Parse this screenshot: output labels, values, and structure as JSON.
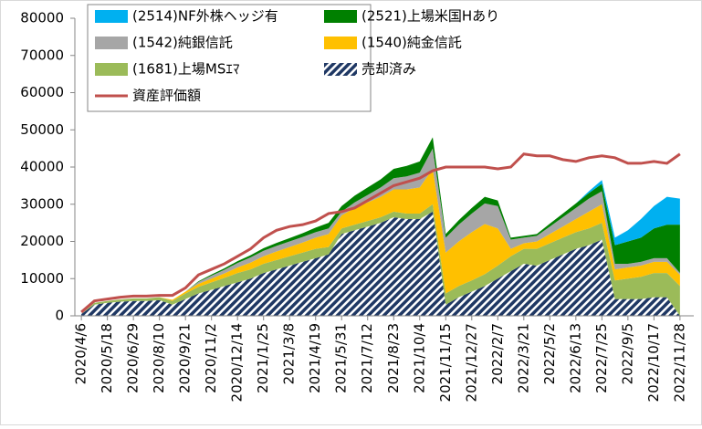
{
  "chart_data": {
    "type": "stacked_area",
    "categories": [
      "2020/4/6",
      null,
      "2020/5/18",
      null,
      "2020/6/29",
      null,
      "2020/8/10",
      null,
      "2020/9/21",
      null,
      "2020/11/2",
      null,
      "2020/12/14",
      null,
      "2021/1/25",
      null,
      "2021/3/8",
      null,
      "2021/4/19",
      null,
      "2021/5/31",
      null,
      "2021/7/12",
      null,
      "2021/8/23",
      null,
      "2021/10/4",
      null,
      "2021/11/15",
      null,
      "2021/12/27",
      null,
      "2022/2/7",
      null,
      "2022/3/21",
      null,
      "2022/5/2",
      null,
      "2022/6/13",
      null,
      "2022/7/25",
      null,
      "2022/9/5",
      null,
      "2022/10/17",
      null,
      "2022/11/28"
    ],
    "series": [
      {
        "name": "売却済み",
        "color": "#1f3864",
        "pattern": "hatch",
        "values": [
          500,
          3000,
          3500,
          3800,
          4000,
          4000,
          4200,
          3000,
          4500,
          6000,
          7000,
          8000,
          9000,
          10000,
          11500,
          12500,
          13500,
          14500,
          15500,
          16500,
          22000,
          23000,
          24000,
          25000,
          26500,
          26000,
          26000,
          28000,
          3000,
          5000,
          6500,
          8000,
          10000,
          12000,
          14000,
          13500,
          15000,
          16500,
          18000,
          19000,
          20500,
          4500,
          4500,
          4500,
          5000,
          5000,
          0
        ]
      },
      {
        "name": "(1681)上場MSｴﾏ",
        "color": "#9bbb59",
        "values": [
          0,
          500,
          500,
          600,
          700,
          700,
          800,
          1000,
          1500,
          1800,
          2000,
          2200,
          2500,
          2500,
          2500,
          2500,
          2500,
          2500,
          2500,
          2000,
          1500,
          1500,
          1500,
          1500,
          1500,
          1500,
          1500,
          2000,
          3000,
          3000,
          3000,
          3200,
          3500,
          4000,
          4000,
          4500,
          4500,
          4500,
          4500,
          4500,
          4500,
          5000,
          5500,
          6000,
          6500,
          6500,
          8000
        ]
      },
      {
        "name": "(1540)純金信託",
        "color": "#ffc000",
        "values": [
          0,
          0,
          0,
          0,
          0,
          0,
          0,
          300,
          500,
          800,
          1000,
          1200,
          1500,
          1800,
          2000,
          2300,
          2500,
          2700,
          3000,
          3500,
          3500,
          4500,
          5000,
          5500,
          6000,
          6500,
          7000,
          9500,
          11000,
          12000,
          13000,
          13500,
          10000,
          2000,
          1500,
          2000,
          2500,
          3000,
          3500,
          4500,
          5000,
          3000,
          3000,
          3000,
          3000,
          3000,
          3000
        ]
      },
      {
        "name": "(1542)純銀信託",
        "color": "#a6a6a6",
        "values": [
          0,
          0,
          0,
          0,
          0,
          0,
          0,
          0,
          0,
          500,
          800,
          1000,
          1200,
          1400,
          1500,
          1500,
          1500,
          1500,
          1500,
          1500,
          1000,
          1500,
          2000,
          2500,
          3000,
          3500,
          4000,
          5500,
          4000,
          4500,
          5000,
          5500,
          6000,
          2500,
          1500,
          1500,
          2000,
          2500,
          3000,
          3500,
          3500,
          1500,
          1000,
          1000,
          1000,
          1000,
          500
        ]
      },
      {
        "name": "(2521)上場米国Hあり",
        "color": "#008000",
        "values": [
          0,
          0,
          0,
          0,
          0,
          0,
          0,
          0,
          0,
          200,
          300,
          400,
          500,
          600,
          700,
          800,
          900,
          1000,
          1200,
          1500,
          1500,
          1800,
          2000,
          2200,
          2500,
          2800,
          3000,
          3000,
          1000,
          1200,
          1500,
          1800,
          1500,
          500,
          500,
          500,
          800,
          1000,
          1200,
          1500,
          2000,
          5000,
          6000,
          6500,
          8000,
          9000,
          13000
        ]
      },
      {
        "name": "(2514)NF外株ヘッジ有",
        "color": "#00b0f0",
        "values": [
          0,
          0,
          0,
          0,
          0,
          0,
          0,
          0,
          0,
          0,
          0,
          0,
          0,
          0,
          0,
          0,
          0,
          0,
          0,
          0,
          0,
          0,
          0,
          0,
          0,
          0,
          0,
          0,
          0,
          0,
          0,
          0,
          0,
          0,
          0,
          0,
          0,
          0,
          0,
          500,
          1000,
          2000,
          3000,
          5000,
          6000,
          7500,
          7000
        ]
      }
    ],
    "line_series": {
      "name": "資産評価額",
      "color": "#c0504d",
      "values": [
        1000,
        4000,
        4500,
        5000,
        5300,
        5300,
        5500,
        5500,
        7500,
        11000,
        12500,
        14000,
        16000,
        18000,
        21000,
        23000,
        24000,
        24500,
        25500,
        27500,
        28000,
        29000,
        31000,
        33000,
        35000,
        36000,
        37000,
        39000,
        40000,
        40000,
        40000,
        40000,
        39500,
        40000,
        43500,
        43000,
        43000,
        42000,
        41500,
        42500,
        43000,
        42500,
        41000,
        41000,
        41500,
        41000,
        43500
      ]
    },
    "ylim": [
      0,
      80000
    ],
    "yticks": [
      0,
      10000,
      20000,
      30000,
      40000,
      50000,
      60000,
      70000,
      80000
    ],
    "grid": false
  }
}
